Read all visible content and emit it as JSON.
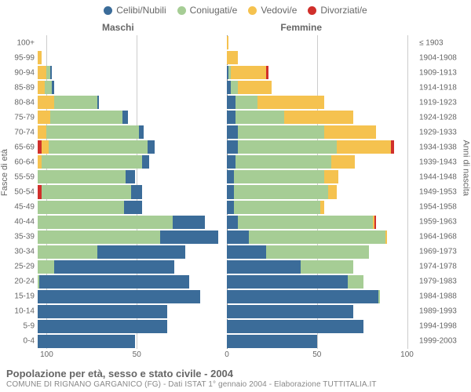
{
  "legend": {
    "items": [
      {
        "label": "Celibi/Nubili",
        "color": "#3b6c99"
      },
      {
        "label": "Coniugati/e",
        "color": "#a6cd95"
      },
      {
        "label": "Vedovi/e",
        "color": "#f5c24f"
      },
      {
        "label": "Divorziati/e",
        "color": "#d02f2b"
      }
    ]
  },
  "header": {
    "male_label": "Maschi",
    "female_label": "Femmine"
  },
  "axes": {
    "y_left_title": "Fasce di età",
    "y_right_title": "Anni di nascita",
    "x_ticks_left": [
      100,
      50,
      0
    ],
    "x_ticks_right": [
      0,
      50,
      100
    ],
    "x_max": 105,
    "grid_color": "#cccccc",
    "center_color": "#888888",
    "center_dash": true,
    "background": "#ffffff",
    "label_fontsize": 10
  },
  "series_order": [
    "celibi",
    "coniugati",
    "vedovi",
    "divorziati"
  ],
  "series_colors": {
    "celibi": "#3b6c99",
    "coniugati": "#a6cd95",
    "vedovi": "#f5c24f",
    "divorziati": "#d02f2b"
  },
  "rows": [
    {
      "age": "100+",
      "birth": "≤ 1903",
      "m": {
        "celibi": 0,
        "coniugati": 0,
        "vedovi": 0,
        "divorziati": 0
      },
      "f": {
        "celibi": 0,
        "coniugati": 0,
        "vedovi": 1,
        "divorziati": 0
      }
    },
    {
      "age": "95-99",
      "birth": "1904-1908",
      "m": {
        "celibi": 0,
        "coniugati": 0,
        "vedovi": 2,
        "divorziati": 0
      },
      "f": {
        "celibi": 0,
        "coniugati": 0,
        "vedovi": 6,
        "divorziati": 0
      }
    },
    {
      "age": "90-94",
      "birth": "1909-1913",
      "m": {
        "celibi": 1,
        "coniugati": 2,
        "vedovi": 5,
        "divorziati": 0
      },
      "f": {
        "celibi": 1,
        "coniugati": 1,
        "vedovi": 20,
        "divorziati": 1
      }
    },
    {
      "age": "85-89",
      "birth": "1914-1918",
      "m": {
        "celibi": 1,
        "coniugati": 4,
        "vedovi": 4,
        "divorziati": 0
      },
      "f": {
        "celibi": 2,
        "coniugati": 4,
        "vedovi": 19,
        "divorziati": 0
      }
    },
    {
      "age": "80-84",
      "birth": "1919-1923",
      "m": {
        "celibi": 1,
        "coniugati": 24,
        "vedovi": 9,
        "divorziati": 0
      },
      "f": {
        "celibi": 5,
        "coniugati": 12,
        "vedovi": 37,
        "divorziati": 0
      }
    },
    {
      "age": "75-79",
      "birth": "1924-1928",
      "m": {
        "celibi": 3,
        "coniugati": 40,
        "vedovi": 7,
        "divorziati": 0
      },
      "f": {
        "celibi": 5,
        "coniugati": 27,
        "vedovi": 38,
        "divorziati": 0
      }
    },
    {
      "age": "70-74",
      "birth": "1929-1933",
      "m": {
        "celibi": 3,
        "coniugati": 51,
        "vedovi": 5,
        "divorziati": 0
      },
      "f": {
        "celibi": 6,
        "coniugati": 48,
        "vedovi": 29,
        "divorziati": 0
      }
    },
    {
      "age": "65-69",
      "birth": "1934-1938",
      "m": {
        "celibi": 4,
        "coniugati": 55,
        "vedovi": 4,
        "divorziati": 2
      },
      "f": {
        "celibi": 6,
        "coniugati": 55,
        "vedovi": 30,
        "divorziati": 2
      }
    },
    {
      "age": "60-64",
      "birth": "1939-1943",
      "m": {
        "celibi": 4,
        "coniugati": 56,
        "vedovi": 2,
        "divorziati": 0
      },
      "f": {
        "celibi": 5,
        "coniugati": 53,
        "vedovi": 13,
        "divorziati": 0
      }
    },
    {
      "age": "55-59",
      "birth": "1944-1948",
      "m": {
        "celibi": 5,
        "coniugati": 49,
        "vedovi": 0,
        "divorziati": 0
      },
      "f": {
        "celibi": 4,
        "coniugati": 50,
        "vedovi": 8,
        "divorziati": 0
      }
    },
    {
      "age": "50-54",
      "birth": "1949-1953",
      "m": {
        "celibi": 6,
        "coniugati": 50,
        "vedovi": 0,
        "divorziati": 2
      },
      "f": {
        "celibi": 4,
        "coniugati": 52,
        "vedovi": 5,
        "divorziati": 0
      }
    },
    {
      "age": "45-49",
      "birth": "1954-1958",
      "m": {
        "celibi": 10,
        "coniugati": 48,
        "vedovi": 0,
        "divorziati": 0
      },
      "f": {
        "celibi": 4,
        "coniugati": 48,
        "vedovi": 2,
        "divorziati": 0
      }
    },
    {
      "age": "40-44",
      "birth": "1959-1963",
      "m": {
        "celibi": 18,
        "coniugati": 75,
        "vedovi": 0,
        "divorziati": 0
      },
      "f": {
        "celibi": 6,
        "coniugati": 75,
        "vedovi": 1,
        "divorziati": 1
      }
    },
    {
      "age": "35-39",
      "birth": "1964-1968",
      "m": {
        "celibi": 32,
        "coniugati": 68,
        "vedovi": 0,
        "divorziati": 0
      },
      "f": {
        "celibi": 12,
        "coniugati": 76,
        "vedovi": 1,
        "divorziati": 0
      }
    },
    {
      "age": "30-34",
      "birth": "1969-1973",
      "m": {
        "celibi": 49,
        "coniugati": 33,
        "vedovi": 0,
        "divorziati": 0
      },
      "f": {
        "celibi": 22,
        "coniugati": 57,
        "vedovi": 0,
        "divorziati": 0
      }
    },
    {
      "age": "25-29",
      "birth": "1974-1978",
      "m": {
        "celibi": 67,
        "coniugati": 9,
        "vedovi": 0,
        "divorziati": 0
      },
      "f": {
        "celibi": 41,
        "coniugati": 29,
        "vedovi": 0,
        "divorziati": 0
      }
    },
    {
      "age": "20-24",
      "birth": "1979-1983",
      "m": {
        "celibi": 83,
        "coniugati": 1,
        "vedovi": 0,
        "divorziati": 0
      },
      "f": {
        "celibi": 67,
        "coniugati": 9,
        "vedovi": 0,
        "divorziati": 0
      }
    },
    {
      "age": "15-19",
      "birth": "1984-1988",
      "m": {
        "celibi": 90,
        "coniugati": 0,
        "vedovi": 0,
        "divorziati": 0
      },
      "f": {
        "celibi": 84,
        "coniugati": 1,
        "vedovi": 0,
        "divorziati": 0
      }
    },
    {
      "age": "10-14",
      "birth": "1989-1993",
      "m": {
        "celibi": 72,
        "coniugati": 0,
        "vedovi": 0,
        "divorziati": 0
      },
      "f": {
        "celibi": 70,
        "coniugati": 0,
        "vedovi": 0,
        "divorziati": 0
      }
    },
    {
      "age": "5-9",
      "birth": "1994-1998",
      "m": {
        "celibi": 72,
        "coniugati": 0,
        "vedovi": 0,
        "divorziati": 0
      },
      "f": {
        "celibi": 76,
        "coniugati": 0,
        "vedovi": 0,
        "divorziati": 0
      }
    },
    {
      "age": "0-4",
      "birth": "1999-2003",
      "m": {
        "celibi": 54,
        "coniugati": 0,
        "vedovi": 0,
        "divorziati": 0
      },
      "f": {
        "celibi": 50,
        "coniugati": 0,
        "vedovi": 0,
        "divorziati": 0
      }
    }
  ],
  "footer": {
    "title": "Popolazione per età, sesso e stato civile - 2004",
    "subtitle": "COMUNE DI RIGNANO GARGANICO (FG) - Dati ISTAT 1° gennaio 2004 - Elaborazione TUTTITALIA.IT"
  }
}
